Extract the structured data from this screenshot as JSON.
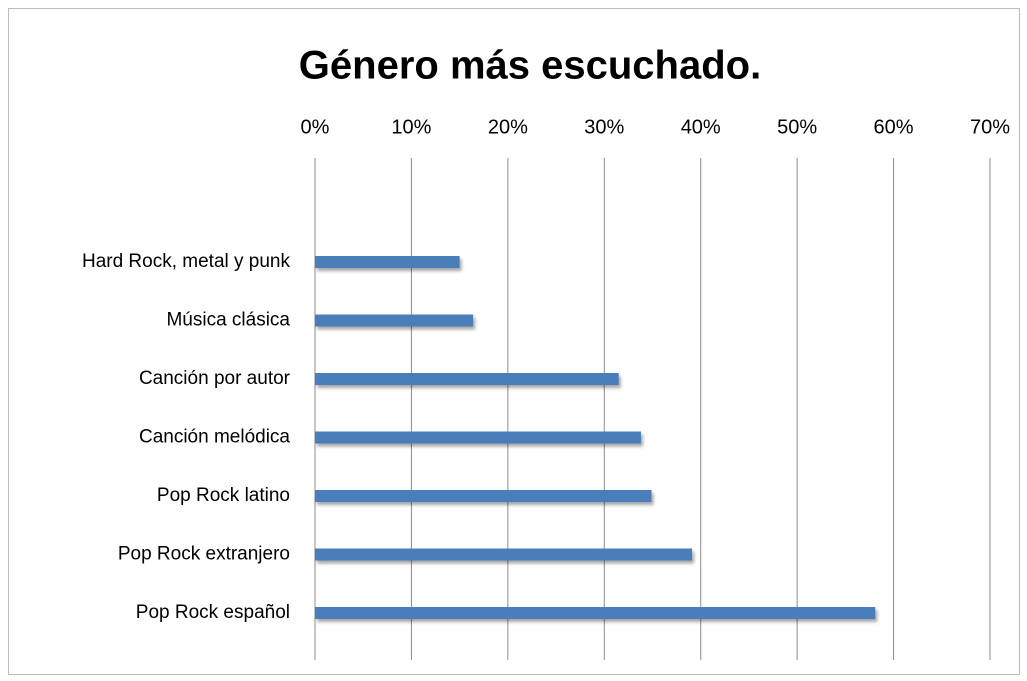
{
  "chart_data": {
    "type": "bar",
    "orientation": "horizontal",
    "title": "Género más escuchado.",
    "categories": [
      "Hard Rock, metal y punk",
      "Música clásica",
      "Canción por autor",
      "Canción melódica",
      "Pop Rock latino",
      "Pop Rock extranjero",
      "Pop Rock español"
    ],
    "values": [
      15,
      16.4,
      31.5,
      33.8,
      34.9,
      39.1,
      58.1
    ],
    "color": "#4a7ebb",
    "xlim": [
      0,
      70
    ],
    "xticks": [
      {
        "value": 0,
        "label": "0%"
      },
      {
        "value": 10,
        "label": "10%"
      },
      {
        "value": 20,
        "label": "20%"
      },
      {
        "value": 30,
        "label": "30%"
      },
      {
        "value": 40,
        "label": "40%"
      },
      {
        "value": 50,
        "label": "50%"
      },
      {
        "value": 60,
        "label": "60%"
      },
      {
        "value": 70,
        "label": "70%"
      }
    ],
    "grid": true
  }
}
